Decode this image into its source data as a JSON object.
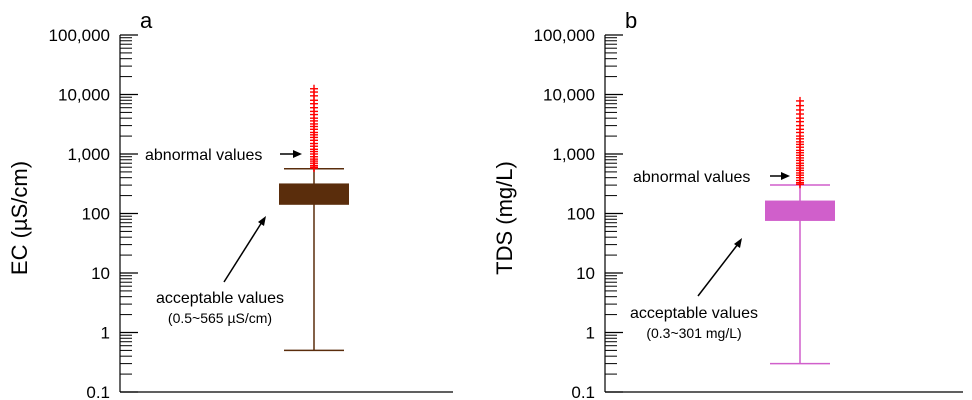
{
  "chart_data": [
    {
      "type": "box",
      "panel_label": "a",
      "ylabel": "EC (µS/cm)",
      "y_scale": "log",
      "ylim": [
        0.1,
        100000
      ],
      "y_tick_labels": [
        "100,000",
        "10,000",
        "1,000",
        "100",
        "10",
        "1",
        "0.1"
      ],
      "box": {
        "whisker_low": 0.5,
        "q1": 140,
        "q3": 320,
        "whisker_high": 565
      },
      "outliers": [
        580,
        600,
        640,
        700,
        760,
        820,
        900,
        1000,
        1100,
        1200,
        1350,
        1500,
        1700,
        1900,
        2100,
        2300,
        2600,
        2900,
        3200,
        3600,
        4000,
        4600,
        5200,
        6000,
        7000,
        8000,
        9500,
        11000,
        12500
      ],
      "colors": {
        "box": "#5a2d0c",
        "outliers": "#ff0000"
      },
      "annotations": {
        "abnormal": "abnormal values",
        "acceptable": "acceptable values",
        "acceptable_range": "(0.5~565 µS/cm)"
      }
    },
    {
      "type": "box",
      "panel_label": "b",
      "ylabel": "TDS (mg/L)",
      "y_scale": "log",
      "ylim": [
        0.1,
        100000
      ],
      "y_tick_labels": [
        "100,000",
        "10,000",
        "1,000",
        "100",
        "10",
        "1",
        "0.1"
      ],
      "box": {
        "whisker_low": 0.3,
        "q1": 75,
        "q3": 165,
        "whisker_high": 301
      },
      "outliers": [
        310,
        330,
        360,
        400,
        440,
        480,
        530,
        580,
        640,
        700,
        780,
        860,
        950,
        1050,
        1150,
        1300,
        1450,
        1600,
        1800,
        2000,
        2300,
        2600,
        3000,
        3500,
        4000,
        4700,
        5500,
        6500,
        7800
      ],
      "colors": {
        "box": "#d05fcb",
        "outliers": "#ff0000"
      },
      "annotations": {
        "abnormal": "abnormal values",
        "acceptable": "acceptable values",
        "acceptable_range": "(0.3~301 mg/L)"
      }
    }
  ]
}
